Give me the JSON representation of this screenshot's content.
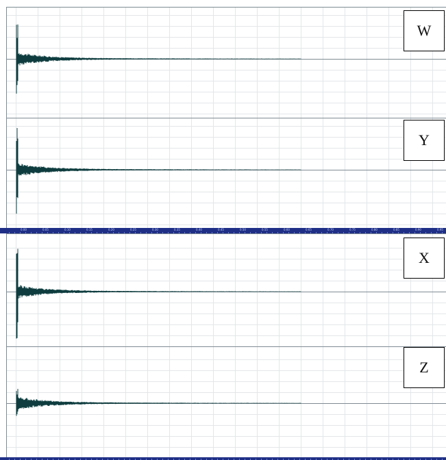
{
  "tracks": [
    {
      "name": "W",
      "peak": 0.72
    },
    {
      "name": "Y",
      "peak": 0.95
    },
    {
      "name": "X",
      "peak": 0.98
    },
    {
      "name": "Z",
      "peak": 0.28
    }
  ],
  "ruler": {
    "labels": [
      "0.00",
      "0.05",
      "0.10",
      "0.15",
      "0.20",
      "0.25",
      "0.30",
      "0.35",
      "0.40",
      "0.45",
      "0.50",
      "0.55",
      "0.60",
      "0.65",
      "0.70",
      "0.75",
      "0.80",
      "0.85",
      "0.90",
      "0.95"
    ]
  },
  "colors": {
    "waveform": "#0f3d3f",
    "grid": "#e3e6e8",
    "baseline": "#7f8b93",
    "ruler": "#1f2f86",
    "ruler_text": "#c7d3ff"
  }
}
